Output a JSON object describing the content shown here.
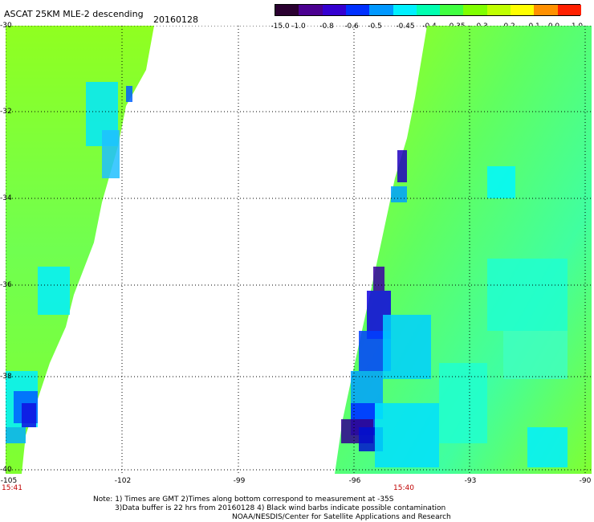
{
  "header": {
    "title": "ASCAT 25KM MLE-2 descending",
    "date": "20160128"
  },
  "colorbar": {
    "labels": [
      "-15.0",
      "-1.0",
      "-0.8",
      "-0.6",
      "-0.5",
      "-0.45",
      "-0.4",
      "-0.35",
      "-0.3",
      "-0.2",
      "-0.1",
      "0.0",
      "1.0"
    ],
    "colors": [
      "#2a0030",
      "#4b0090",
      "#3500d0",
      "#0030ff",
      "#0098ff",
      "#00f0ff",
      "#00ffb0",
      "#40ff40",
      "#80ff00",
      "#c0ff00",
      "#ffff00",
      "#ff9000",
      "#ff2000"
    ]
  },
  "map": {
    "lat_labels": [
      "-30",
      "-32",
      "-34",
      "-36",
      "-38",
      "-40"
    ],
    "lon_labels": [
      "-105",
      "-102",
      "-99",
      "-96",
      "-93",
      "-90"
    ],
    "lat_range": [
      -40,
      -30
    ],
    "lon_range": [
      -105,
      -90
    ],
    "times": [
      "15:41",
      "15:40"
    ]
  },
  "footer": {
    "line1": "Note: 1) Times are GMT 2)Times along bottom correspond to measurement at -35S",
    "line2": "3)Data buffer is 22 hrs from 20160128 4) Black wind barbs indicate possible contamination",
    "line3": "NOAA/NESDIS/Center for Satellite Applications and Research"
  }
}
